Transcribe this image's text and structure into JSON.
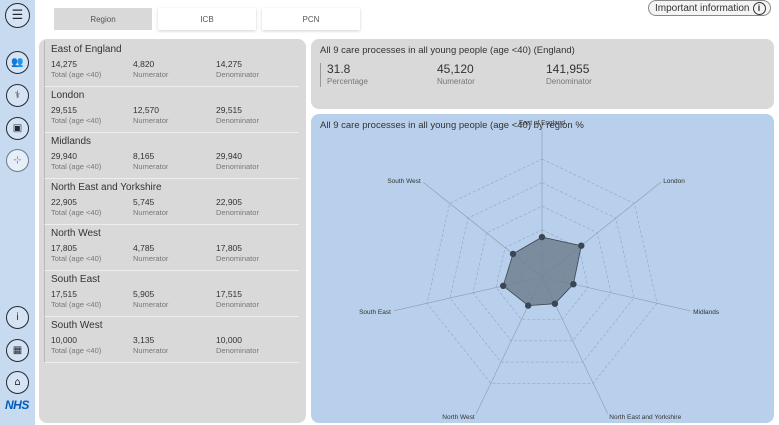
{
  "sidebar": {
    "icons": [
      {
        "name": "menu-icon",
        "glyph": "☰"
      },
      {
        "name": "people-icon",
        "glyph": "👥"
      },
      {
        "name": "stethoscope-icon",
        "glyph": "⚕"
      },
      {
        "name": "hospital-icon",
        "glyph": "▣"
      },
      {
        "name": "hierarchy-icon",
        "glyph": "⊹"
      },
      {
        "name": "info-icon",
        "glyph": "i"
      },
      {
        "name": "table-icon",
        "glyph": "▦"
      },
      {
        "name": "home-icon",
        "glyph": "⌂"
      }
    ],
    "logo": "NHS"
  },
  "tabs": [
    {
      "label": "Region",
      "active": true
    },
    {
      "label": "ICB",
      "active": false
    },
    {
      "label": "PCN",
      "active": false
    }
  ],
  "info_button": {
    "label": "Important information"
  },
  "regions": [
    {
      "name": "East of England",
      "total": "14,275",
      "numerator": "4,820",
      "denominator": "14,275"
    },
    {
      "name": "London",
      "total": "29,515",
      "numerator": "12,570",
      "denominator": "29,515"
    },
    {
      "name": "Midlands",
      "total": "29,940",
      "numerator": "8,165",
      "denominator": "29,940"
    },
    {
      "name": "North East and Yorkshire",
      "total": "22,905",
      "numerator": "5,745",
      "denominator": "22,905"
    },
    {
      "name": "North West",
      "total": "17,805",
      "numerator": "4,785",
      "denominator": "17,805"
    },
    {
      "name": "South East",
      "total": "17,515",
      "numerator": "5,905",
      "denominator": "17,515"
    },
    {
      "name": "South West",
      "total": "10,000",
      "numerator": "3,135",
      "denominator": "10,000"
    }
  ],
  "region_labels": {
    "total": "Total (age <40)",
    "numerator": "Numerator",
    "denominator": "Denominator"
  },
  "summary": {
    "title": "All 9 care processes in all young people (age <40) (England)",
    "percentage": "31.8",
    "percentage_label": "Percentage",
    "numerator": "45,120",
    "numerator_label": "Numerator",
    "denominator": "141,955",
    "denominator_label": "Denominator"
  },
  "radar": {
    "title": "All 9 care processes in all young people (age <40) by region %",
    "fill_color": "#6f8090",
    "point_color": "#3a4654"
  },
  "chart_data": {
    "type": "radar",
    "categories": [
      "East of England",
      "London",
      "Midlands",
      "North East and Yorkshire",
      "North West",
      "South East",
      "South West"
    ],
    "values": [
      33.8,
      42.6,
      27.3,
      25.1,
      26.9,
      33.7,
      31.4
    ],
    "rmax": 100,
    "rings": 5
  }
}
